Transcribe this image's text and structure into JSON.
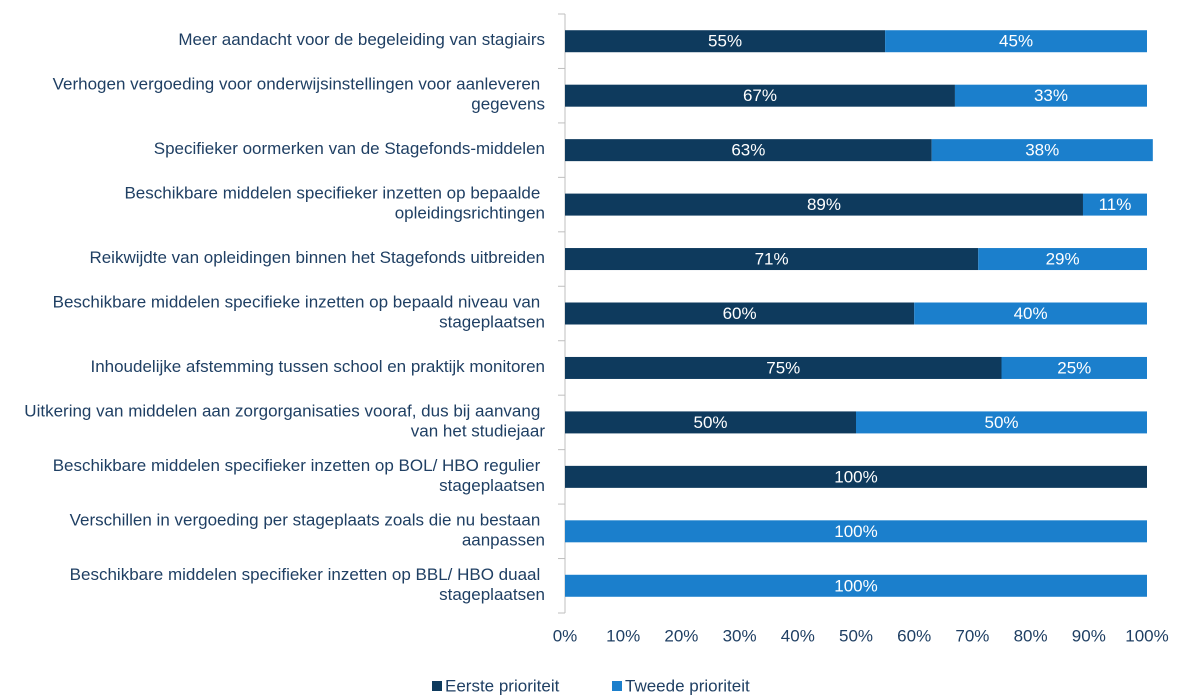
{
  "chart_data": {
    "type": "stacked_barh",
    "categories": [
      "Meer aandacht voor de begeleiding van stagiairs",
      "Verhogen vergoeding voor onderwijsinstellingen voor aanleveren gegevens",
      "Specifieker oormerken van de Stagefonds-middelen",
      "Beschikbare middelen specifieker inzetten op bepaalde opleidingsrichtingen",
      "Reikwijdte van opleidingen binnen het Stagefonds uitbreiden",
      "Beschikbare middelen specifieke inzetten op bepaald niveau van stageplaatsen",
      "Inhoudelijke afstemming tussen school en praktijk monitoren",
      "Uitkering van middelen aan zorgorganisaties vooraf, dus bij aanvang van het studiejaar",
      "Beschikbare middelen specifieker inzetten op BOL/ HBO regulier stageplaatsen",
      "Verschillen in vergoeding per stageplaats zoals die nu bestaan aanpassen",
      "Beschikbare middelen specifieker inzetten op BBL/ HBO duaal stageplaatsen"
    ],
    "series": [
      {
        "name": "Eerste prioriteit",
        "color": "#0e3a5d",
        "values": [
          55,
          67,
          63,
          89,
          71,
          60,
          75,
          50,
          100,
          0,
          0
        ],
        "value_labels": [
          "55%",
          "67%",
          "63%",
          "89%",
          "71%",
          "60%",
          "75%",
          "50%",
          "100%",
          null,
          null
        ]
      },
      {
        "name": "Tweede prioriteit",
        "color": "#1b7fcc",
        "values": [
          45,
          33,
          38,
          11,
          29,
          40,
          25,
          50,
          0,
          100,
          100
        ],
        "value_labels": [
          "45%",
          "33%",
          "38%",
          "11%",
          "29%",
          "40%",
          "25%",
          "50%",
          null,
          "100%",
          "100%"
        ]
      }
    ],
    "xlim": [
      0,
      100
    ],
    "xticks": [
      {
        "value": 0,
        "label": "0%"
      },
      {
        "value": 10,
        "label": "10%"
      },
      {
        "value": 20,
        "label": "20%"
      },
      {
        "value": 30,
        "label": "30%"
      },
      {
        "value": 40,
        "label": "40%"
      },
      {
        "value": 50,
        "label": "50%"
      },
      {
        "value": 60,
        "label": "60%"
      },
      {
        "value": 70,
        "label": "70%"
      },
      {
        "value": 80,
        "label": "80%"
      },
      {
        "value": 90,
        "label": "90%"
      },
      {
        "value": 100,
        "label": "100%"
      }
    ],
    "legend": "bottom",
    "grid": false
  }
}
